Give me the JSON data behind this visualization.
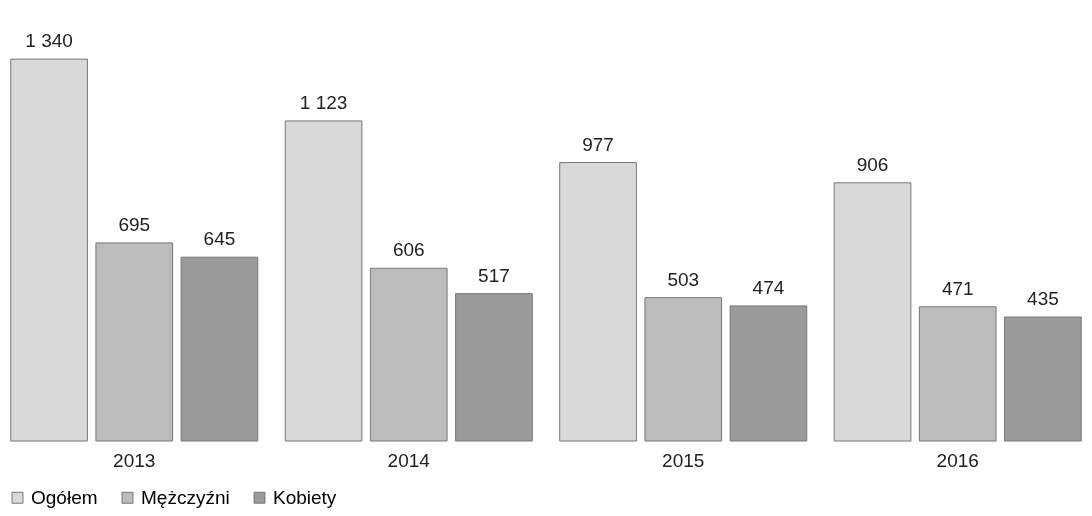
{
  "chart_data": {
    "type": "bar",
    "categories": [
      "2013",
      "2014",
      "2015",
      "2016"
    ],
    "series": [
      {
        "name": "Ogółem",
        "color": "#d9d9d9",
        "values": [
          1340,
          1123,
          977,
          906
        ],
        "value_labels": [
          "1 340",
          "1 123",
          "977",
          "906"
        ]
      },
      {
        "name": "Mężczyźni",
        "color": "#bcbcbc",
        "values": [
          695,
          606,
          503,
          471
        ],
        "value_labels": [
          "695",
          "606",
          "503",
          "471"
        ]
      },
      {
        "name": "Kobiety",
        "color": "#9a9a9a",
        "values": [
          645,
          517,
          474,
          435
        ],
        "value_labels": [
          "645",
          "517",
          "474",
          "435"
        ]
      }
    ],
    "legend": "bottom"
  }
}
